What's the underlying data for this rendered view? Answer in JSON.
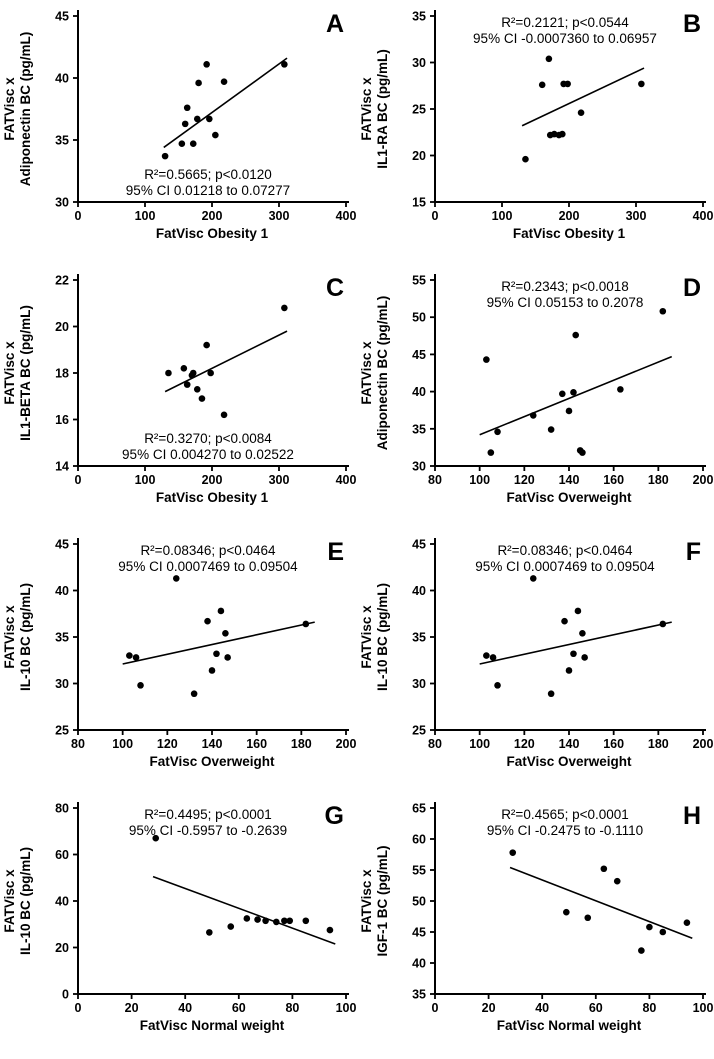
{
  "figure": {
    "background": "#ffffff",
    "ink": "#000000"
  },
  "chart_data": [
    {
      "type": "scatter",
      "panel": "A",
      "ylabel_line1": "FATVisc x",
      "ylabel_line2": "Adiponectin BC (pg/mL)",
      "xlabel": "FatVisc Obesity 1",
      "xlim": [
        0,
        400
      ],
      "ylim": [
        30,
        45
      ],
      "xticks": [
        0,
        100,
        200,
        300,
        400
      ],
      "yticks": [
        30,
        35,
        40,
        45
      ],
      "r2_text": "R²=0.5665; p<0.0120",
      "ci_text": "95% CI 0.01218 to 0.07277",
      "annotation_pos": "bottom",
      "points": [
        [
          130,
          33.7
        ],
        [
          155,
          34.7
        ],
        [
          160,
          36.3
        ],
        [
          163,
          37.6
        ],
        [
          172,
          34.7
        ],
        [
          178,
          36.7
        ],
        [
          180,
          39.6
        ],
        [
          192,
          41.1
        ],
        [
          196,
          36.7
        ],
        [
          205,
          35.4
        ],
        [
          218,
          39.7
        ],
        [
          308,
          41.1
        ]
      ],
      "trend": {
        "x1": 128,
        "y1": 34.4,
        "x2": 312,
        "y2": 41.6
      }
    },
    {
      "type": "scatter",
      "panel": "B",
      "ylabel_line1": "FATVisc x",
      "ylabel_line2": "IL1-RA BC (pg/mL)",
      "xlabel": "FatVisc Obesity 1",
      "xlim": [
        0,
        400
      ],
      "ylim": [
        15,
        35
      ],
      "xticks": [
        0,
        100,
        200,
        300,
        400
      ],
      "yticks": [
        15,
        20,
        25,
        30,
        35
      ],
      "r2_text": "R²=0.2121; p<0.0544",
      "ci_text": "95% CI -0.0007360 to 0.06957",
      "annotation_pos": "top",
      "points": [
        [
          135,
          19.6
        ],
        [
          160,
          27.6
        ],
        [
          170,
          30.4
        ],
        [
          172,
          22.2
        ],
        [
          178,
          22.3
        ],
        [
          185,
          22.2
        ],
        [
          190,
          22.3
        ],
        [
          192,
          27.7
        ],
        [
          198,
          27.7
        ],
        [
          218,
          24.6
        ],
        [
          308,
          27.7
        ]
      ],
      "trend": {
        "x1": 130,
        "y1": 23.2,
        "x2": 312,
        "y2": 29.4
      }
    },
    {
      "type": "scatter",
      "panel": "C",
      "ylabel_line1": "FATVisc x",
      "ylabel_line2": "IL1-BETA BC (pg/mL)",
      "xlabel": "FatVisc Obesity 1",
      "xlim": [
        0,
        400
      ],
      "ylim": [
        14,
        22
      ],
      "xticks": [
        0,
        100,
        200,
        300,
        400
      ],
      "yticks": [
        14,
        16,
        18,
        20,
        22
      ],
      "r2_text": "R²=0.3270; p<0.0084",
      "ci_text": "95% CI 0.004270 to 0.02522",
      "annotation_pos": "bottom",
      "points": [
        [
          135,
          18.0
        ],
        [
          158,
          18.2
        ],
        [
          163,
          17.5
        ],
        [
          170,
          17.9
        ],
        [
          172,
          18.0
        ],
        [
          178,
          17.3
        ],
        [
          185,
          16.9
        ],
        [
          192,
          19.2
        ],
        [
          198,
          18.0
        ],
        [
          218,
          16.2
        ],
        [
          308,
          20.8
        ]
      ],
      "trend": {
        "x1": 130,
        "y1": 17.2,
        "x2": 312,
        "y2": 19.8
      }
    },
    {
      "type": "scatter",
      "panel": "D",
      "ylabel_line1": "FATVisc x",
      "ylabel_line2": "Adiponectin BC (pg/mL)",
      "xlabel": "FatVisc Overweight",
      "xlim": [
        80,
        200
      ],
      "ylim": [
        30,
        55
      ],
      "xticks": [
        80,
        100,
        120,
        140,
        160,
        180,
        200
      ],
      "yticks": [
        30,
        35,
        40,
        45,
        50,
        55
      ],
      "r2_text": "R²=0.2343; p<0.0018",
      "ci_text": "95% CI 0.05153 to 0.2078",
      "annotation_pos": "top",
      "points": [
        [
          103,
          44.3
        ],
        [
          105,
          31.8
        ],
        [
          108,
          34.6
        ],
        [
          124,
          36.8
        ],
        [
          132,
          34.9
        ],
        [
          137,
          39.7
        ],
        [
          140,
          37.4
        ],
        [
          142,
          39.9
        ],
        [
          143,
          47.6
        ],
        [
          145,
          32.1
        ],
        [
          146,
          31.8
        ],
        [
          163,
          40.3
        ],
        [
          182,
          50.8
        ]
      ],
      "trend": {
        "x1": 100,
        "y1": 34.2,
        "x2": 186,
        "y2": 44.7
      }
    },
    {
      "type": "scatter",
      "panel": "E",
      "ylabel_line1": "FATVisc x",
      "ylabel_line2": "IL-10 BC (pg/mL)",
      "xlabel": "FatVisc Overweight",
      "xlim": [
        80,
        200
      ],
      "ylim": [
        25,
        45
      ],
      "xticks": [
        80,
        100,
        120,
        140,
        160,
        180,
        200
      ],
      "yticks": [
        25,
        30,
        35,
        40,
        45
      ],
      "r2_text": "R²=0.08346; p<0.0464",
      "ci_text": "95% CI 0.0007469 to 0.09504",
      "annotation_pos": "top",
      "points": [
        [
          103,
          33.0
        ],
        [
          106,
          32.8
        ],
        [
          108,
          29.8
        ],
        [
          124,
          41.3
        ],
        [
          132,
          28.9
        ],
        [
          138,
          36.7
        ],
        [
          140,
          31.4
        ],
        [
          142,
          33.2
        ],
        [
          144,
          37.8
        ],
        [
          146,
          35.4
        ],
        [
          147,
          32.8
        ],
        [
          182,
          36.4
        ]
      ],
      "trend": {
        "x1": 100,
        "y1": 32.1,
        "x2": 186,
        "y2": 36.6
      }
    },
    {
      "type": "scatter",
      "panel": "F",
      "ylabel_line1": "FATVisc x",
      "ylabel_line2": "IL-10 BC (pg/mL)",
      "xlabel": "FatVisc Overweight",
      "xlim": [
        80,
        200
      ],
      "ylim": [
        25,
        45
      ],
      "xticks": [
        80,
        100,
        120,
        140,
        160,
        180,
        200
      ],
      "yticks": [
        25,
        30,
        35,
        40,
        45
      ],
      "r2_text": "R²=0.08346; p<0.0464",
      "ci_text": "95% CI 0.0007469 to 0.09504",
      "annotation_pos": "top",
      "points": [
        [
          103,
          33.0
        ],
        [
          106,
          32.8
        ],
        [
          108,
          29.8
        ],
        [
          124,
          41.3
        ],
        [
          132,
          28.9
        ],
        [
          138,
          36.7
        ],
        [
          140,
          31.4
        ],
        [
          142,
          33.2
        ],
        [
          144,
          37.8
        ],
        [
          146,
          35.4
        ],
        [
          147,
          32.8
        ],
        [
          182,
          36.4
        ]
      ],
      "trend": {
        "x1": 100,
        "y1": 32.1,
        "x2": 186,
        "y2": 36.6
      }
    },
    {
      "type": "scatter",
      "panel": "G",
      "ylabel_line1": "FATVisc x",
      "ylabel_line2": "IL-10 BC (pg/mL)",
      "xlabel": "FatVisc Normal weight",
      "xlim": [
        0,
        100
      ],
      "ylim": [
        0,
        80
      ],
      "xticks": [
        0,
        20,
        40,
        60,
        80,
        100
      ],
      "yticks": [
        0,
        20,
        40,
        60,
        80
      ],
      "r2_text": "R²=0.4495; p<0.0001",
      "ci_text": "95% CI -0.5957 to -0.2639",
      "annotation_pos": "top",
      "points": [
        [
          29,
          67
        ],
        [
          49,
          26.5
        ],
        [
          57,
          29
        ],
        [
          63,
          32.5
        ],
        [
          67,
          32
        ],
        [
          70,
          31.5
        ],
        [
          74,
          31
        ],
        [
          77,
          31.5
        ],
        [
          79,
          31.5
        ],
        [
          85,
          31.5
        ],
        [
          94,
          27.5
        ]
      ],
      "trend": {
        "x1": 28,
        "y1": 50.5,
        "x2": 96,
        "y2": 21.5
      }
    },
    {
      "type": "scatter",
      "panel": "H",
      "ylabel_line1": "FATVisc x",
      "ylabel_line2": "IGF-1 BC (pg/mL)",
      "xlabel": "FatVisc Normal weight",
      "xlim": [
        0,
        100
      ],
      "ylim": [
        35,
        65
      ],
      "xticks": [
        0,
        20,
        40,
        60,
        80,
        100
      ],
      "yticks": [
        35,
        40,
        45,
        50,
        55,
        60,
        65
      ],
      "r2_text": "R²=0.4565; p<0.0001",
      "ci_text": "95% CI -0.2475 to -0.1110",
      "annotation_pos": "top",
      "points": [
        [
          29,
          57.8
        ],
        [
          49,
          48.2
        ],
        [
          57,
          47.3
        ],
        [
          63,
          55.2
        ],
        [
          68,
          53.2
        ],
        [
          77,
          42
        ],
        [
          80,
          45.8
        ],
        [
          85,
          45
        ],
        [
          94,
          46.5
        ]
      ],
      "trend": {
        "x1": 28,
        "y1": 55.4,
        "x2": 96,
        "y2": 44.0
      }
    }
  ]
}
